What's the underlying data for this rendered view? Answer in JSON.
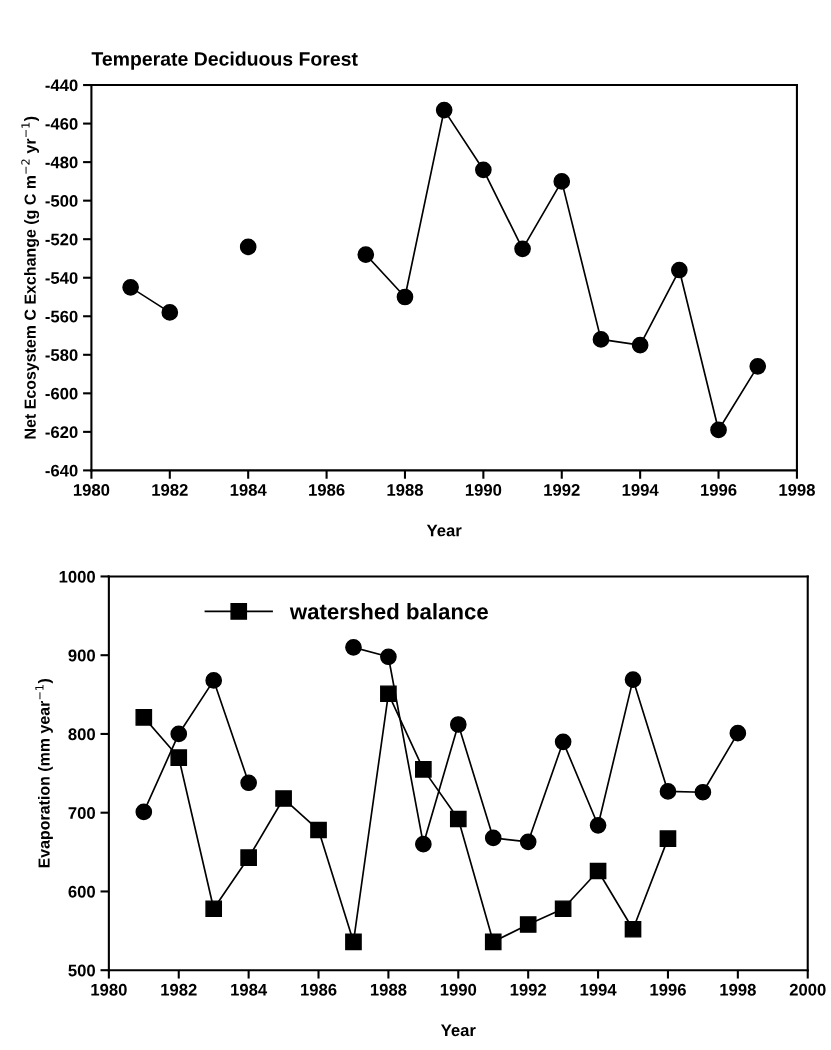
{
  "chart_data": [
    {
      "type": "line",
      "title": "Temperate Deciduous Forest",
      "xlabel": "Year",
      "ylabel": "Net Ecosystem C Exchange (g C m$^{−2}$ yr$^{−1}$)",
      "x": [
        1981,
        1982,
        1983,
        1984,
        1985,
        1986,
        1987,
        1988,
        1989,
        1990,
        1991,
        1992,
        1993,
        1994,
        1995,
        1996,
        1997
      ],
      "series": [
        {
          "color": "#000000",
          "marker": "circle",
          "values": [
            -545,
            -558,
            null,
            -524,
            null,
            null,
            -528,
            -550,
            -453,
            -484,
            -525,
            -490,
            -572,
            -575,
            -536,
            -619,
            -586
          ]
        }
      ],
      "xlim": [
        1980,
        1998
      ],
      "xticks": [
        1980,
        1982,
        1984,
        1986,
        1988,
        1990,
        1992,
        1994,
        1996,
        1998
      ],
      "ylim": [
        -640,
        -440
      ],
      "yticks": [
        -640,
        -620,
        -600,
        -580,
        -560,
        -540,
        -520,
        -500,
        -480,
        -460,
        -440
      ],
      "grid": false,
      "legend": false,
      "line_style": "solid"
    },
    {
      "type": "line",
      "xlabel": "Year",
      "ylabel": "Evaporation (mm year$^{−1}$)",
      "x": [
        1981,
        1982,
        1983,
        1984,
        1985,
        1986,
        1987,
        1988,
        1989,
        1990,
        1991,
        1992,
        1993,
        1994,
        1995,
        1996,
        1997,
        1998
      ],
      "series": [
        {
          "color": "#000000",
          "marker": "circle",
          "values": [
            701,
            800,
            868,
            738,
            null,
            null,
            910,
            898,
            660,
            812,
            668,
            663,
            790,
            684,
            869,
            727,
            726,
            801
          ]
        },
        {
          "name": "watershed balance",
          "color": "#000000",
          "marker": "square",
          "values": [
            821,
            770,
            578,
            643,
            718,
            678,
            536,
            851,
            755,
            692,
            536,
            558,
            578,
            626,
            552,
            667,
            null,
            null
          ]
        }
      ],
      "xlim": [
        1980,
        2000
      ],
      "xticks": [
        1980,
        1982,
        1984,
        1986,
        1988,
        1990,
        1992,
        1994,
        1996,
        1998,
        2000
      ],
      "ylim": [
        500,
        1000
      ],
      "yticks": [
        500,
        600,
        700,
        800,
        900,
        1000
      ],
      "grid": false,
      "legend": "top left",
      "line_style": "solid"
    }
  ]
}
